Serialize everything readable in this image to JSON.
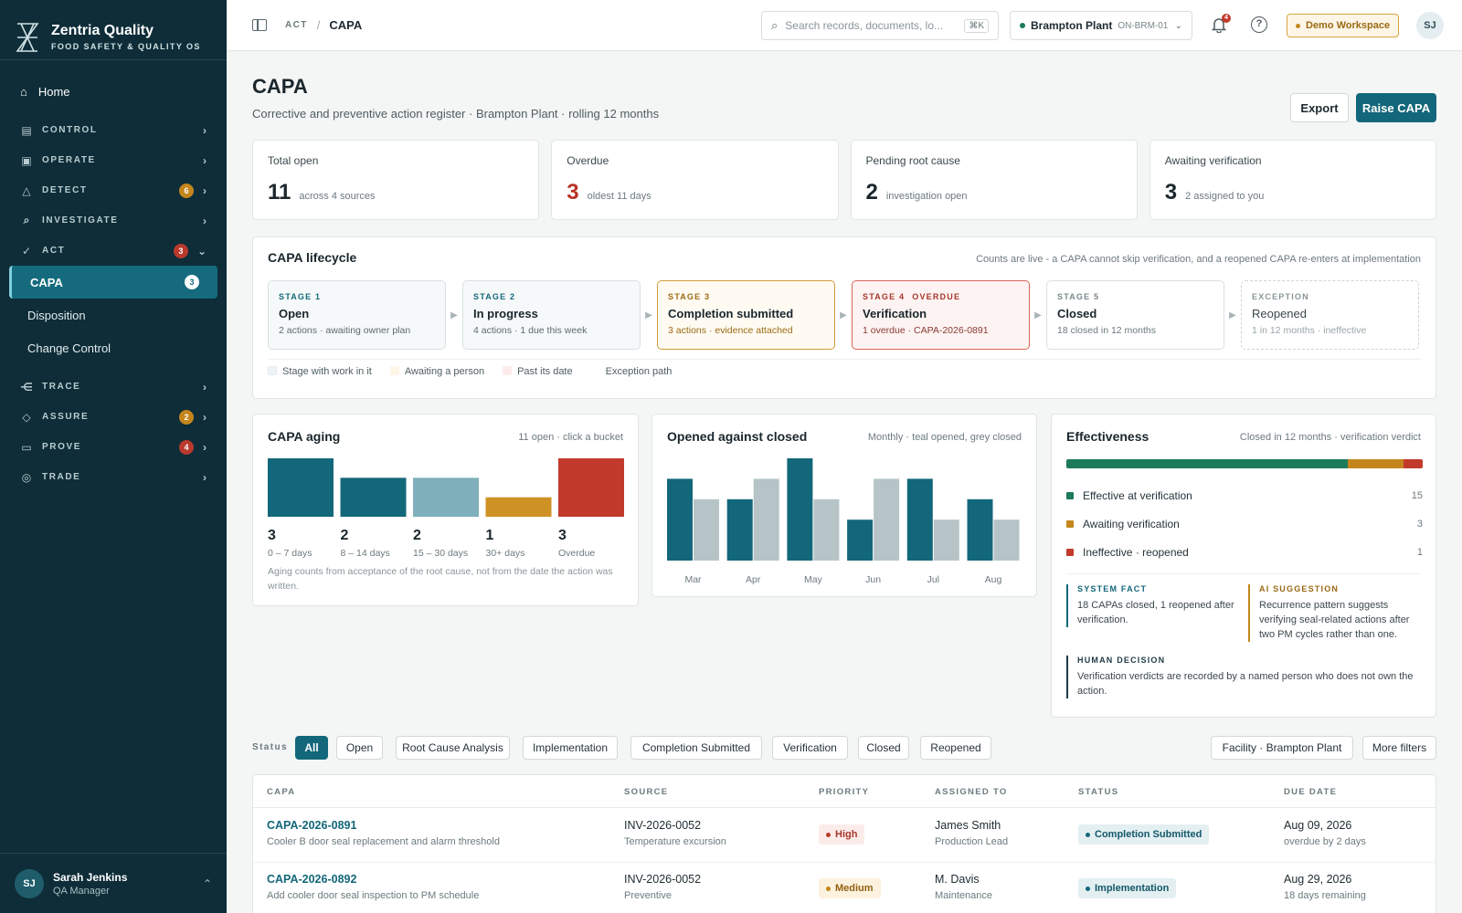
{
  "brand": {
    "name": "Zentria Quality",
    "tagline": "FOOD SAFETY & QUALITY OS"
  },
  "nav": {
    "home": "Home",
    "sections": [
      {
        "label": "CONTROL",
        "icon": "document-icon"
      },
      {
        "label": "OPERATE",
        "icon": "clipboard-icon"
      },
      {
        "label": "DETECT",
        "icon": "warning-icon",
        "badge": "6"
      },
      {
        "label": "INVESTIGATE",
        "icon": "search-icon"
      },
      {
        "label": "ACT",
        "icon": "check-circle-icon",
        "badge": "3"
      }
    ],
    "act_items": [
      {
        "label": "CAPA",
        "badge": "3"
      },
      {
        "label": "Disposition"
      },
      {
        "label": "Change Control"
      }
    ],
    "sections2": [
      {
        "label": "TRACE",
        "icon": "share-icon"
      },
      {
        "label": "ASSURE",
        "icon": "shield-icon",
        "badge": "2"
      },
      {
        "label": "PROVE",
        "icon": "archive-icon",
        "badge": "4"
      },
      {
        "label": "TRADE",
        "icon": "globe-icon"
      }
    ]
  },
  "user": {
    "initials": "SJ",
    "name": "Sarah Jenkins",
    "role": "QA Manager"
  },
  "topbar": {
    "crumb_parent": "ACT",
    "crumb_current": "CAPA",
    "search_placeholder": "Search records, documents, lo...",
    "search_shortcut": "⌘K",
    "plant_name": "Brampton Plant",
    "plant_code": "ON-BRM-01",
    "notif_count": "4",
    "workspace": "Demo Workspace",
    "avatar": "SJ"
  },
  "page": {
    "title": "CAPA",
    "subtitle": "Corrective and preventive action register · Brampton Plant · rolling 12 months",
    "export": "Export",
    "raise": "Raise CAPA"
  },
  "kpis": [
    {
      "label": "Total open",
      "value": "11",
      "note": "across 4 sources"
    },
    {
      "label": "Overdue",
      "value": "3",
      "note": "oldest 11 days"
    },
    {
      "label": "Pending root cause",
      "value": "2",
      "note": "investigation open"
    },
    {
      "label": "Awaiting verification",
      "value": "3",
      "note": "2 assigned to you"
    }
  ],
  "lifecycle": {
    "title": "CAPA lifecycle",
    "note": "Counts are live - a CAPA cannot skip verification, and a reopened CAPA re-enters at implementation",
    "stages": [
      {
        "key": "STAGE 1",
        "name": "Open",
        "detail": "2 actions · awaiting owner plan"
      },
      {
        "key": "STAGE 2",
        "name": "In progress",
        "detail": "4 actions · 1 due this week"
      },
      {
        "key": "STAGE 3",
        "name": "Completion submitted",
        "detail": "3 actions · evidence attached"
      },
      {
        "key": "STAGE 4",
        "tag": "OVERDUE",
        "name": "Verification",
        "detail": "1 overdue · CAPA-2026-0891"
      },
      {
        "key": "STAGE 5",
        "name": "Closed",
        "detail": "18 closed in 12 months"
      },
      {
        "key": "EXCEPTION",
        "name": "Reopened",
        "detail": "1 in 12 months · ineffective"
      }
    ],
    "legend": [
      "Stage with work in it",
      "Awaiting a person",
      "Past its date",
      "Exception path"
    ]
  },
  "aging": {
    "title": "CAPA aging",
    "note": "11 open · click a bucket",
    "footnote": "Aging counts from acceptance of the root cause, not from the date the action was written."
  },
  "openclose": {
    "title": "Opened against closed",
    "note": "Monthly · teal opened, grey closed"
  },
  "effectiveness": {
    "title": "Effectiveness",
    "note": "Closed in 12 months · verification verdict",
    "items": [
      {
        "label": "Effective at verification",
        "value": "15",
        "color": "#1d7a5b"
      },
      {
        "label": "Awaiting verification",
        "value": "3",
        "color": "#c4861c"
      },
      {
        "label": "Ineffective · reopened",
        "value": "1",
        "color": "#c23a2c"
      }
    ],
    "notes": [
      {
        "kind": "SYSTEM FACT",
        "text": "18 CAPAs closed, 1 reopened after verification."
      },
      {
        "kind": "AI SUGGESTION",
        "text": "Recurrence pattern suggests verifying seal-related actions after two PM cycles rather than one."
      },
      {
        "kind": "HUMAN DECISION",
        "text": "Verification verdicts are recorded by a named person who does not own the action."
      }
    ]
  },
  "chart_data": [
    {
      "type": "bar",
      "title": "CAPA aging",
      "categories": [
        "0 – 7 days",
        "8 – 14 days",
        "15 – 30 days",
        "30+ days",
        "Overdue"
      ],
      "values": [
        3,
        2,
        2,
        1,
        3
      ],
      "labels": [
        "3",
        "2",
        "2",
        "1",
        "3"
      ],
      "colors": [
        "#13677a",
        "#13677a",
        "#7fb0bb",
        "#cf9224",
        "#c23a2c"
      ],
      "ylim": [
        0,
        3
      ]
    },
    {
      "type": "bar",
      "title": "Opened against closed",
      "categories": [
        "Mar",
        "Apr",
        "May",
        "Jun",
        "Jul",
        "Aug"
      ],
      "series": [
        {
          "values": [
            4,
            3,
            5,
            2,
            4,
            3
          ],
          "color": "#13677a"
        },
        {
          "values": [
            3,
            4,
            3,
            4,
            2,
            2
          ],
          "color": "#b6c4c8"
        }
      ],
      "ylim": [
        0,
        5
      ]
    }
  ],
  "filters": {
    "label": "Status",
    "chips": [
      "All",
      "Open",
      "Root Cause Analysis",
      "Implementation",
      "Completion Submitted",
      "Verification",
      "Closed",
      "Reopened"
    ],
    "facility": "Facility · Brampton Plant",
    "more": "More filters"
  },
  "table": {
    "headers": [
      "CAPA",
      "SOURCE",
      "PRIORITY",
      "ASSIGNED TO",
      "STATUS",
      "DUE DATE"
    ],
    "rows": [
      {
        "id": "CAPA-2026-0891",
        "desc": "Cooler B door seal replacement and alarm threshold",
        "source": "INV-2026-0052",
        "source_type": "Temperature excursion",
        "priority": "High",
        "assignee": "James Smith",
        "role": "Production Lead",
        "status": "Completion Submitted",
        "due": "Aug 09, 2026",
        "due_note": "overdue by 2 days"
      },
      {
        "id": "CAPA-2026-0892",
        "desc": "Add cooler door seal inspection to PM schedule",
        "source": "INV-2026-0052",
        "source_type": "Preventive",
        "priority": "Medium",
        "assignee": "M. Davis",
        "role": "Maintenance",
        "status": "Implementation",
        "due": "Aug 29, 2026",
        "due_note": "18 days remaining"
      }
    ]
  }
}
